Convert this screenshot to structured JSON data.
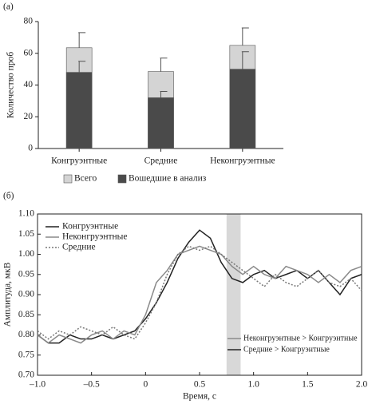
{
  "chart_data": [
    {
      "type": "bar",
      "panel_label": "(а)",
      "ylabel": "Количество проб",
      "categories": [
        "Конгруэнтные",
        "Средние",
        "Неконгруэнтные"
      ],
      "series": [
        {
          "name": "Всего",
          "color": "#d4d4d4",
          "values": [
            63.5,
            48.5,
            65
          ],
          "errors": [
            9.5,
            8.5,
            11
          ]
        },
        {
          "name": "Вошедшие в анализ",
          "color": "#4a4a4a",
          "values": [
            48,
            32,
            50
          ],
          "errors": [
            7,
            4,
            11
          ]
        }
      ],
      "ylim": [
        0,
        80
      ],
      "yticks": [
        0,
        20,
        40,
        60,
        80
      ]
    },
    {
      "type": "line",
      "panel_label": "(б)",
      "xlabel": "Время, с",
      "ylabel": "Амплитуда, мкВ",
      "x": [
        -1.0,
        -0.9,
        -0.8,
        -0.7,
        -0.6,
        -0.5,
        -0.4,
        -0.3,
        -0.2,
        -0.1,
        0,
        0.1,
        0.2,
        0.3,
        0.4,
        0.5,
        0.6,
        0.7,
        0.8,
        0.9,
        1.0,
        1.1,
        1.2,
        1.3,
        1.4,
        1.5,
        1.6,
        1.7,
        1.8,
        1.9,
        2.0
      ],
      "series": [
        {
          "name": "Конгруэнтные",
          "color": "#222222",
          "dash": "none",
          "values": [
            0.8,
            0.78,
            0.78,
            0.8,
            0.79,
            0.79,
            0.8,
            0.79,
            0.8,
            0.81,
            0.84,
            0.88,
            0.93,
            0.99,
            1.03,
            1.06,
            1.04,
            0.98,
            0.94,
            0.93,
            0.95,
            0.96,
            0.94,
            0.95,
            0.96,
            0.94,
            0.96,
            0.93,
            0.9,
            0.94,
            0.95
          ]
        },
        {
          "name": "Неконгруэнтные",
          "color": "#8a8a8a",
          "dash": "none",
          "values": [
            0.8,
            0.78,
            0.8,
            0.79,
            0.78,
            0.8,
            0.81,
            0.79,
            0.81,
            0.8,
            0.85,
            0.93,
            0.96,
            1.0,
            1.01,
            1.02,
            1.01,
            1.0,
            0.97,
            0.95,
            0.97,
            0.95,
            0.94,
            0.97,
            0.96,
            0.95,
            0.93,
            0.95,
            0.93,
            0.96,
            0.97
          ]
        },
        {
          "name": "Средние",
          "color": "#777777",
          "dash": "2,2",
          "values": [
            0.81,
            0.79,
            0.81,
            0.8,
            0.82,
            0.81,
            0.8,
            0.82,
            0.8,
            0.79,
            0.83,
            0.88,
            0.95,
            1.0,
            1.02,
            1.01,
            1.02,
            1.0,
            0.98,
            0.96,
            0.94,
            0.92,
            0.95,
            0.93,
            0.92,
            0.94,
            0.96,
            0.93,
            0.92,
            0.94,
            0.91
          ]
        }
      ],
      "highlight": [
        0.75,
        0.88
      ],
      "annotations": [
        {
          "text": "Неконгруэнтные > Конгруэнтные",
          "color": "#8a8a8a"
        },
        {
          "text": "Средние > Конгруэнтные",
          "color": "#222222"
        }
      ],
      "xlim": [
        -1.0,
        2.0
      ],
      "xticks": [
        {
          "value": -1.0,
          "label": "–1.0"
        },
        {
          "value": -0.5,
          "label": "–0.5"
        },
        0,
        0.5,
        {
          "value": 1.0,
          "label": "1.0"
        },
        1.5,
        {
          "value": 2.0,
          "label": "2.0"
        }
      ],
      "ylim": [
        0.7,
        1.1
      ],
      "yticks": [
        {
          "value": 0.7,
          "label": "0.70"
        },
        {
          "value": 0.75,
          "label": "0.75"
        },
        {
          "value": 0.8,
          "label": "0.80"
        },
        {
          "value": 0.85,
          "label": "0.85"
        },
        {
          "value": 0.9,
          "label": "0.90"
        },
        {
          "value": 0.95,
          "label": "0.95"
        },
        {
          "value": 1.0,
          "label": "1.00"
        },
        {
          "value": 1.05,
          "label": "1.05"
        },
        {
          "value": 1.1,
          "label": "1.10"
        }
      ]
    }
  ]
}
